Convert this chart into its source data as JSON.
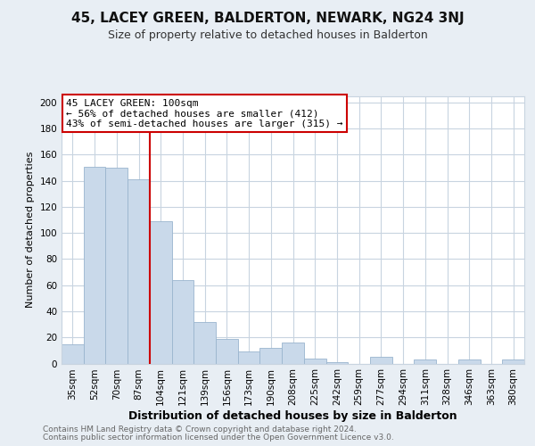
{
  "title": "45, LACEY GREEN, BALDERTON, NEWARK, NG24 3NJ",
  "subtitle": "Size of property relative to detached houses in Balderton",
  "xlabel": "Distribution of detached houses by size in Balderton",
  "ylabel": "Number of detached properties",
  "bar_labels": [
    "35sqm",
    "52sqm",
    "70sqm",
    "87sqm",
    "104sqm",
    "121sqm",
    "139sqm",
    "156sqm",
    "173sqm",
    "190sqm",
    "208sqm",
    "225sqm",
    "242sqm",
    "259sqm",
    "277sqm",
    "294sqm",
    "311sqm",
    "328sqm",
    "346sqm",
    "363sqm",
    "380sqm"
  ],
  "bar_values": [
    15,
    151,
    150,
    141,
    109,
    64,
    32,
    19,
    9,
    12,
    16,
    4,
    1,
    0,
    5,
    0,
    3,
    0,
    3,
    0,
    3
  ],
  "bar_color": "#c9d9ea",
  "bar_edge_color": "#9ab5ce",
  "marker_index": 4,
  "vline_color": "#cc0000",
  "annotation_title": "45 LACEY GREEN: 100sqm",
  "annotation_line1": "← 56% of detached houses are smaller (412)",
  "annotation_line2": "43% of semi-detached houses are larger (315) →",
  "annotation_box_edge": "#cc0000",
  "ylim": [
    0,
    205
  ],
  "yticks": [
    0,
    20,
    40,
    60,
    80,
    100,
    120,
    140,
    160,
    180,
    200
  ],
  "footer_line1": "Contains HM Land Registry data © Crown copyright and database right 2024.",
  "footer_line2": "Contains public sector information licensed under the Open Government Licence v3.0.",
  "bg_color": "#e8eef4",
  "plot_bg_color": "#ffffff",
  "grid_color": "#c8d4e0",
  "title_fontsize": 11,
  "subtitle_fontsize": 9,
  "xlabel_fontsize": 9,
  "ylabel_fontsize": 8,
  "tick_fontsize": 7.5,
  "annotation_fontsize": 8,
  "footer_fontsize": 6.5
}
